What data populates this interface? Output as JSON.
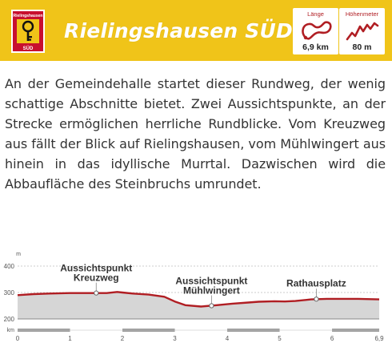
{
  "header": {
    "title": "Rielingshausen SÜD",
    "crest_text_top": "Rielingshausen",
    "crest_text_bottom": "SÜD",
    "length": {
      "label": "Länge",
      "value": "6,9 km",
      "icon": "route-loop-icon"
    },
    "elevation": {
      "label": "Höhenmeter",
      "value": "80 m",
      "icon": "elevation-profile-icon"
    }
  },
  "description": {
    "text": "An der Gemeindehalle startet dieser Rundweg, der wenig schattige Abschnitte bietet. Zwei Aussichtspunkte, an der Strecke ermöglichen herrliche Rundblicke. Vom Kreuzweg aus fällt der Blick auf Rielingshausen, vom Mühlwingert aus hinein in das idyllische Murrtal. Dazwischen wird die Abbaufläche des Steinbruchs umrundet."
  },
  "chart_data": {
    "type": "area",
    "xlabel": "km",
    "ylabel": "m",
    "xlim": [
      0,
      6.9
    ],
    "ylim": [
      200,
      400
    ],
    "x_ticks": [
      "0",
      "1",
      "2",
      "3",
      "4",
      "5",
      "6",
      "6,9"
    ],
    "y_ticks": [
      "400",
      "300",
      "200"
    ],
    "profile": {
      "x": [
        0,
        0.3,
        0.6,
        1.0,
        1.4,
        1.7,
        1.9,
        2.0,
        2.2,
        2.5,
        2.8,
        3.0,
        3.2,
        3.5,
        3.8,
        4.1,
        4.4,
        4.6,
        4.9,
        5.1,
        5.3,
        5.6,
        5.9,
        6.2,
        6.5,
        6.9
      ],
      "y": [
        290,
        294,
        296,
        298,
        298,
        298,
        302,
        300,
        296,
        292,
        284,
        266,
        252,
        247,
        252,
        258,
        262,
        265,
        267,
        266,
        268,
        274,
        276,
        276,
        276,
        274
      ]
    },
    "annotations": [
      {
        "x": 1.5,
        "y": 298,
        "label": "Aussichtspunkt",
        "sub": "Kreuzweg"
      },
      {
        "x": 3.7,
        "y": 250,
        "label": "Aussichtspunkt",
        "sub": "Mühlwingert"
      },
      {
        "x": 5.7,
        "y": 275,
        "label": "Rathausplatz",
        "sub": ""
      }
    ]
  },
  "colors": {
    "banner": "#f0c419",
    "accent": "#b01e23",
    "profile_line": "#b01e23",
    "profile_fill": "#d6d6d6",
    "scale_bar": "#9e9e9e"
  }
}
